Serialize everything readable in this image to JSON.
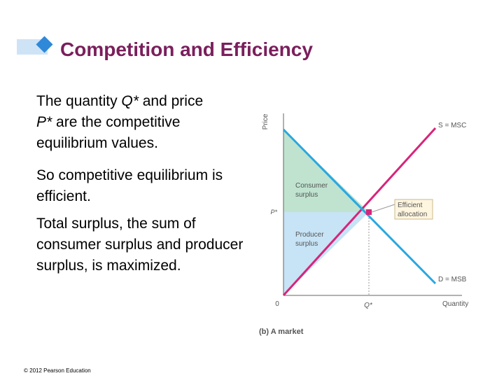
{
  "slide": {
    "title": "Competition and Efficiency",
    "paragraphs": [
      [
        "The quantity ",
        "Q*",
        " and price ",
        "P*",
        " are the competitive equilibrium values."
      ],
      [
        "So competitive equilibrium is efficient."
      ],
      [
        "Total surplus, the sum of consumer surplus and producer surplus, is maximized."
      ]
    ],
    "copyright": "© 2012 Pearson Education"
  },
  "chart_data": {
    "type": "line",
    "caption": "(b) A market",
    "xlabel": "Quantity",
    "ylabel": "Price",
    "origin_label": "0",
    "x_tick_label": "Q*",
    "y_tick_label": "P*",
    "series": [
      {
        "name": "S = MSC",
        "color": "#d6257a"
      },
      {
        "name": "D = MSB",
        "color": "#29a8e0"
      }
    ],
    "areas": [
      {
        "name": "Consumer surplus",
        "color": "#bfe3cf"
      },
      {
        "name": "Producer surplus",
        "color": "#c7e3f6"
      }
    ],
    "annotation": "Efficient allocation",
    "equilibrium_color": "#d6257a"
  }
}
